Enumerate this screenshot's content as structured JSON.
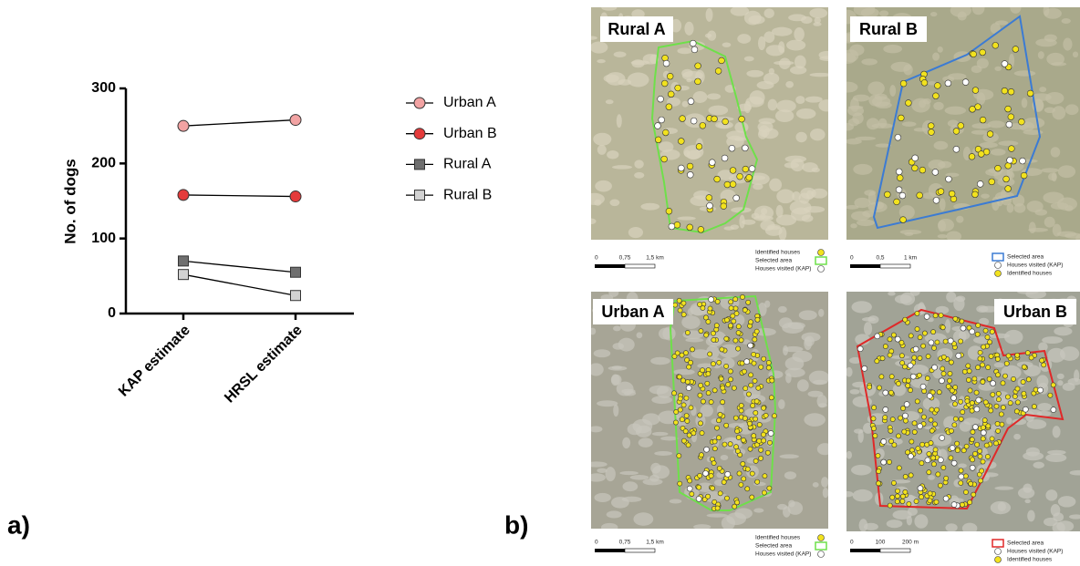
{
  "chart_data": {
    "type": "line",
    "y_label": "No. of dogs",
    "categories": [
      "KAP estimate",
      "HRSL estimate"
    ],
    "series": [
      {
        "name": "Urban A",
        "color": "#f2a3a3",
        "marker": "circle",
        "values": [
          250,
          258
        ]
      },
      {
        "name": "Urban B",
        "color": "#e43b3b",
        "marker": "circle",
        "values": [
          158,
          156
        ]
      },
      {
        "name": "Rural A",
        "color": "#6f6f6f",
        "marker": "square",
        "values": [
          70,
          55
        ]
      },
      {
        "name": "Rural B",
        "color": "#d2d2d2",
        "marker": "square",
        "values": [
          52,
          24
        ]
      }
    ],
    "ylim": [
      0,
      300
    ],
    "yticks": [
      0,
      100,
      200,
      300
    ],
    "legend": "right"
  },
  "panel_labels": [
    "a)",
    "b)"
  ],
  "maps": [
    {
      "title": "Rural A",
      "scale_labels": [
        "0",
        "0,75",
        "1,5 km"
      ],
      "legend": [
        "Identified houses",
        "Selected area",
        "Houses visited (KAP)"
      ]
    },
    {
      "title": "Rural B",
      "scale_labels": [
        "0",
        "0,5",
        "1 km"
      ],
      "legend": [
        "Selected area",
        "Houses visited (KAP)",
        "Identified houses"
      ]
    },
    {
      "title": "Urban A",
      "scale_labels": [
        "0",
        "0,75",
        "1,5 km"
      ],
      "legend": [
        "Identified houses",
        "Selected area",
        "Houses visited (KAP)"
      ]
    },
    {
      "title": "Urban B",
      "scale_labels": [
        "0",
        "100",
        "200 m"
      ],
      "legend": [
        "Selected area",
        "Houses visited (KAP)",
        "Identified houses"
      ]
    }
  ]
}
